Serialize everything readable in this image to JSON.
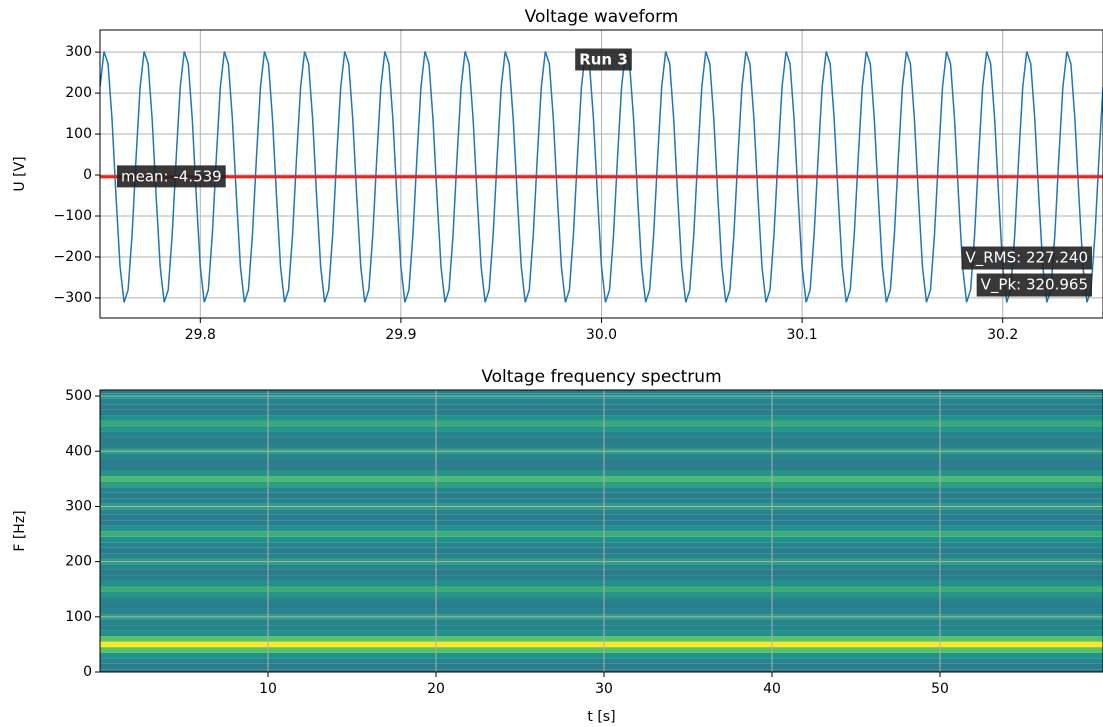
{
  "chart_data": [
    {
      "type": "line",
      "title": "Voltage waveform",
      "ylabel": "U [V]",
      "grid": true,
      "xlim": [
        29.75,
        30.25
      ],
      "ylim": [
        -349,
        354
      ],
      "xticks": [
        29.8,
        29.9,
        {
          "value": 30,
          "label": "30.0"
        },
        30.1,
        30.2
      ],
      "yticks": [
        {
          "value": -300,
          "label": "−300"
        },
        {
          "value": -200,
          "label": "−200"
        },
        {
          "value": -100,
          "label": "−100"
        },
        0,
        100,
        200,
        300
      ],
      "mean": -4.539,
      "mean_color": "#e8221c",
      "annotations": [
        "Run 3",
        "mean: -4.539",
        "V_RMS: 227.240",
        "V_Pk: 320.965"
      ],
      "x": [
        29.75,
        29.752,
        29.754,
        29.756,
        29.758,
        29.76,
        29.762,
        29.764,
        29.766,
        29.768,
        29.77,
        29.772,
        29.774,
        29.776,
        29.778,
        29.78,
        29.782,
        29.784,
        29.786,
        29.788,
        29.79,
        29.792,
        29.794,
        29.796,
        29.798,
        29.8,
        29.802,
        29.804,
        29.806,
        29.808,
        29.81,
        29.812,
        29.814,
        29.816,
        29.818,
        29.82,
        29.822,
        29.824,
        29.826,
        29.828,
        29.83,
        29.832,
        29.834,
        29.836,
        29.838,
        29.84,
        29.842,
        29.844,
        29.846,
        29.848,
        29.85,
        29.852,
        29.854,
        29.856,
        29.858,
        29.86,
        29.862,
        29.864,
        29.866,
        29.868,
        29.87,
        29.872,
        29.874,
        29.876,
        29.878,
        29.88,
        29.882,
        29.884,
        29.886,
        29.888,
        29.89,
        29.892,
        29.894,
        29.896,
        29.898,
        29.9,
        29.902,
        29.904,
        29.906,
        29.908,
        29.91,
        29.912,
        29.914,
        29.916,
        29.918,
        29.92,
        29.922,
        29.924,
        29.926,
        29.928,
        29.93,
        29.932,
        29.934,
        29.936,
        29.938,
        29.94,
        29.942,
        29.944,
        29.946,
        29.948,
        29.95,
        29.952,
        29.954,
        29.956,
        29.958,
        29.96,
        29.962,
        29.964,
        29.966,
        29.968,
        29.97,
        29.972,
        29.974,
        29.976,
        29.978,
        29.98,
        29.982,
        29.984,
        29.986,
        29.988,
        29.99,
        29.992,
        29.994,
        29.996,
        29.998,
        30,
        30.002,
        30.004,
        30.006,
        30.008,
        30.01,
        30.012,
        30.014,
        30.016,
        30.018,
        30.02,
        30.022,
        30.024,
        30.026,
        30.028,
        30.03,
        30.032,
        30.034,
        30.036,
        30.038,
        30.04,
        30.042,
        30.044,
        30.046,
        30.048,
        30.05,
        30.052,
        30.054,
        30.056,
        30.058,
        30.06,
        30.062,
        30.064,
        30.066,
        30.068,
        30.07,
        30.072,
        30.074,
        30.076,
        30.078,
        30.08,
        30.082,
        30.084,
        30.086,
        30.088,
        30.09,
        30.092,
        30.094,
        30.096,
        30.098,
        30.1,
        30.102,
        30.104,
        30.106,
        30.108,
        30.11,
        30.112,
        30.114,
        30.116,
        30.118,
        30.12,
        30.122,
        30.124,
        30.126,
        30.128,
        30.13,
        30.132,
        30.134,
        30.136,
        30.138,
        30.14,
        30.142,
        30.144,
        30.146,
        30.148,
        30.15,
        30.152,
        30.154,
        30.156,
        30.158,
        30.16,
        30.162,
        30.164,
        30.166,
        30.168,
        30.17,
        30.172,
        30.174,
        30.176,
        30.178,
        30.18,
        30.182,
        30.184,
        30.186,
        30.188,
        30.19,
        30.192,
        30.194,
        30.196,
        30.198,
        30.2,
        30.202,
        30.204,
        30.206,
        30.208,
        30.21,
        30.212,
        30.214,
        30.216,
        30.218,
        30.22,
        30.222,
        30.224,
        30.226,
        30.228,
        30.23,
        30.232,
        30.234,
        30.236,
        30.238,
        30.24,
        30.242,
        30.244,
        30.246,
        30.248,
        30.25
      ],
      "series": [
        {
          "color": "#1f77b4",
          "values": [
            214.7,
            301.7,
            271.7,
            136.2,
            -53,
            -223.7,
            -310.7,
            -280.7,
            -145.2,
            44,
            214.7,
            301.7,
            271.7,
            136.2,
            -53,
            -223.7,
            -310.7,
            -280.7,
            -145.2,
            44,
            214.7,
            301.7,
            271.7,
            136.2,
            -53,
            -223.7,
            -310.7,
            -280.7,
            -145.2,
            44,
            214.7,
            301.7,
            271.7,
            136.2,
            -53,
            -223.7,
            -310.7,
            -280.7,
            -145.2,
            44,
            214.7,
            301.7,
            271.7,
            136.2,
            -53,
            -223.7,
            -310.7,
            -280.7,
            -145.2,
            44,
            214.7,
            301.7,
            271.7,
            136.2,
            -53,
            -223.7,
            -310.7,
            -280.7,
            -145.2,
            44,
            214.7,
            301.7,
            271.7,
            136.2,
            -53,
            -223.7,
            -310.7,
            -280.7,
            -145.2,
            44,
            214.7,
            301.7,
            271.7,
            136.2,
            -53,
            -223.7,
            -310.7,
            -280.7,
            -145.2,
            44,
            214.7,
            301.7,
            271.7,
            136.2,
            -53,
            -223.7,
            -310.7,
            -280.7,
            -145.2,
            44,
            214.7,
            301.7,
            271.7,
            136.2,
            -53,
            -223.7,
            -310.7,
            -280.7,
            -145.2,
            44,
            214.7,
            301.7,
            271.7,
            136.2,
            -53,
            -223.7,
            -310.7,
            -280.7,
            -145.2,
            44,
            214.7,
            301.7,
            271.7,
            136.2,
            -53,
            -223.7,
            -310.7,
            -280.7,
            -145.2,
            44,
            214.7,
            301.7,
            271.7,
            136.2,
            -53,
            -223.7,
            -310.7,
            -280.7,
            -145.2,
            44,
            214.7,
            301.7,
            271.7,
            136.2,
            -53,
            -223.7,
            -310.7,
            -280.7,
            -145.2,
            44,
            214.7,
            301.7,
            271.7,
            136.2,
            -53,
            -223.7,
            -310.7,
            -280.7,
            -145.2,
            44,
            214.7,
            301.7,
            271.7,
            136.2,
            -53,
            -223.7,
            -310.7,
            -280.7,
            -145.2,
            44,
            214.7,
            301.7,
            271.7,
            136.2,
            -53,
            -223.7,
            -310.7,
            -280.7,
            -145.2,
            44,
            214.7,
            301.7,
            271.7,
            136.2,
            -53,
            -223.7,
            -310.7,
            -280.7,
            -145.2,
            44,
            214.7,
            301.7,
            271.7,
            136.2,
            -53,
            -223.7,
            -310.7,
            -280.7,
            -145.2,
            44,
            214.7,
            301.7,
            271.7,
            136.2,
            -53,
            -223.7,
            -310.7,
            -280.7,
            -145.2,
            44,
            214.7,
            301.7,
            271.7,
            136.2,
            -53,
            -223.7,
            -310.7,
            -280.7,
            -145.2,
            44,
            214.7,
            301.7,
            271.7,
            136.2,
            -53,
            -223.7,
            -310.7,
            -280.7,
            -145.2,
            44,
            214.7,
            301.7,
            271.7,
            136.2,
            -53,
            -223.7,
            -310.7,
            -280.7,
            -145.2,
            44,
            214.7,
            301.7,
            271.7,
            136.2,
            -53,
            -223.7,
            -310.7,
            -280.7,
            -145.2,
            44,
            214.7,
            301.7,
            271.7,
            136.2,
            -53,
            -223.7,
            -310.7,
            -280.7,
            -145.2,
            44,
            214.7
          ]
        }
      ]
    },
    {
      "type": "heatmap",
      "title": "Voltage frequency spectrum",
      "xlabel": "t [s]",
      "ylabel": "F [Hz]",
      "grid": true,
      "xlim": [
        0,
        59.7
      ],
      "ylim": [
        0,
        511
      ],
      "xticks": [
        10,
        20,
        30,
        40,
        50
      ],
      "yticks": [
        0,
        100,
        200,
        300,
        400,
        500
      ],
      "colormap": "viridis",
      "vlim": [
        0,
        1
      ],
      "frequencies": [
        0,
        10,
        20,
        30,
        40,
        50,
        60,
        70,
        80,
        90,
        100,
        110,
        120,
        130,
        140,
        150,
        160,
        170,
        180,
        190,
        200,
        210,
        220,
        230,
        240,
        250,
        260,
        270,
        280,
        290,
        300,
        310,
        320,
        330,
        340,
        350,
        360,
        370,
        380,
        390,
        400,
        410,
        420,
        430,
        440,
        450,
        460,
        470,
        480,
        490,
        500,
        510
      ],
      "values": [
        0.4,
        0.42,
        0.45,
        0.5,
        0.72,
        1.0,
        0.72,
        0.5,
        0.45,
        0.45,
        0.55,
        0.45,
        0.42,
        0.45,
        0.52,
        0.62,
        0.5,
        0.42,
        0.42,
        0.45,
        0.55,
        0.45,
        0.42,
        0.45,
        0.5,
        0.62,
        0.5,
        0.42,
        0.42,
        0.45,
        0.55,
        0.45,
        0.42,
        0.45,
        0.55,
        0.68,
        0.52,
        0.42,
        0.42,
        0.45,
        0.55,
        0.45,
        0.42,
        0.45,
        0.52,
        0.6,
        0.5,
        0.42,
        0.42,
        0.45,
        0.5,
        0.42
      ]
    }
  ]
}
